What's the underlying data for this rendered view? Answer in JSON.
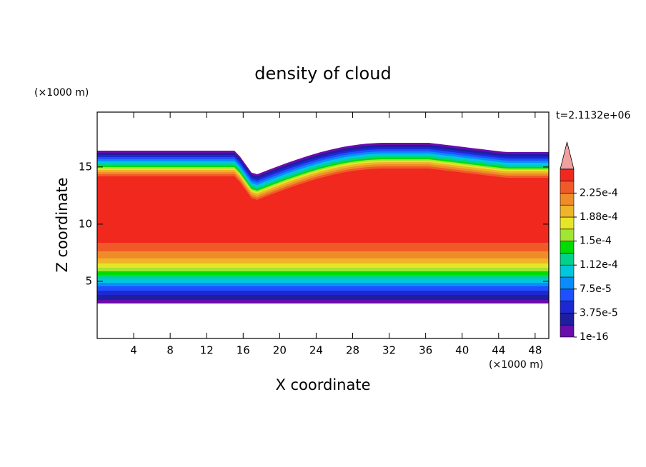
{
  "chart_data": {
    "type": "contour",
    "title": "density of cloud",
    "xlabel": "X coordinate",
    "ylabel": "Z coordinate",
    "x_unit": "(×1000 m)",
    "y_unit": "(×1000 m)",
    "time_label": "t=2.1132e+06",
    "xlim": [
      0,
      49.5
    ],
    "ylim": [
      0,
      19.8
    ],
    "xticks": [
      4,
      8,
      12,
      16,
      20,
      24,
      28,
      32,
      36,
      40,
      44,
      48
    ],
    "yticks": [
      5,
      10,
      15
    ],
    "colorbar": {
      "colors": [
        "#6a0dad",
        "#1e1ea0",
        "#1e28d2",
        "#1e50ff",
        "#0a8cff",
        "#00c8dc",
        "#00d28c",
        "#00dc00",
        "#a0e632",
        "#e6e628",
        "#f0b428",
        "#f08c28",
        "#f05a28",
        "#f0281e"
      ],
      "extend_color": "#f0a0a0",
      "ticks": [
        {
          "value": 1e-16,
          "label": "1e-16"
        },
        {
          "value": 3.75e-05,
          "label": "3.75e-5"
        },
        {
          "value": 7.5e-05,
          "label": "7.5e-5"
        },
        {
          "value": 0.000112,
          "label": "1.12e-4"
        },
        {
          "value": 0.00015,
          "label": "1.5e-4"
        },
        {
          "value": 0.000188,
          "label": "1.88e-4"
        },
        {
          "value": 0.000225,
          "label": "2.25e-4"
        }
      ]
    }
  }
}
